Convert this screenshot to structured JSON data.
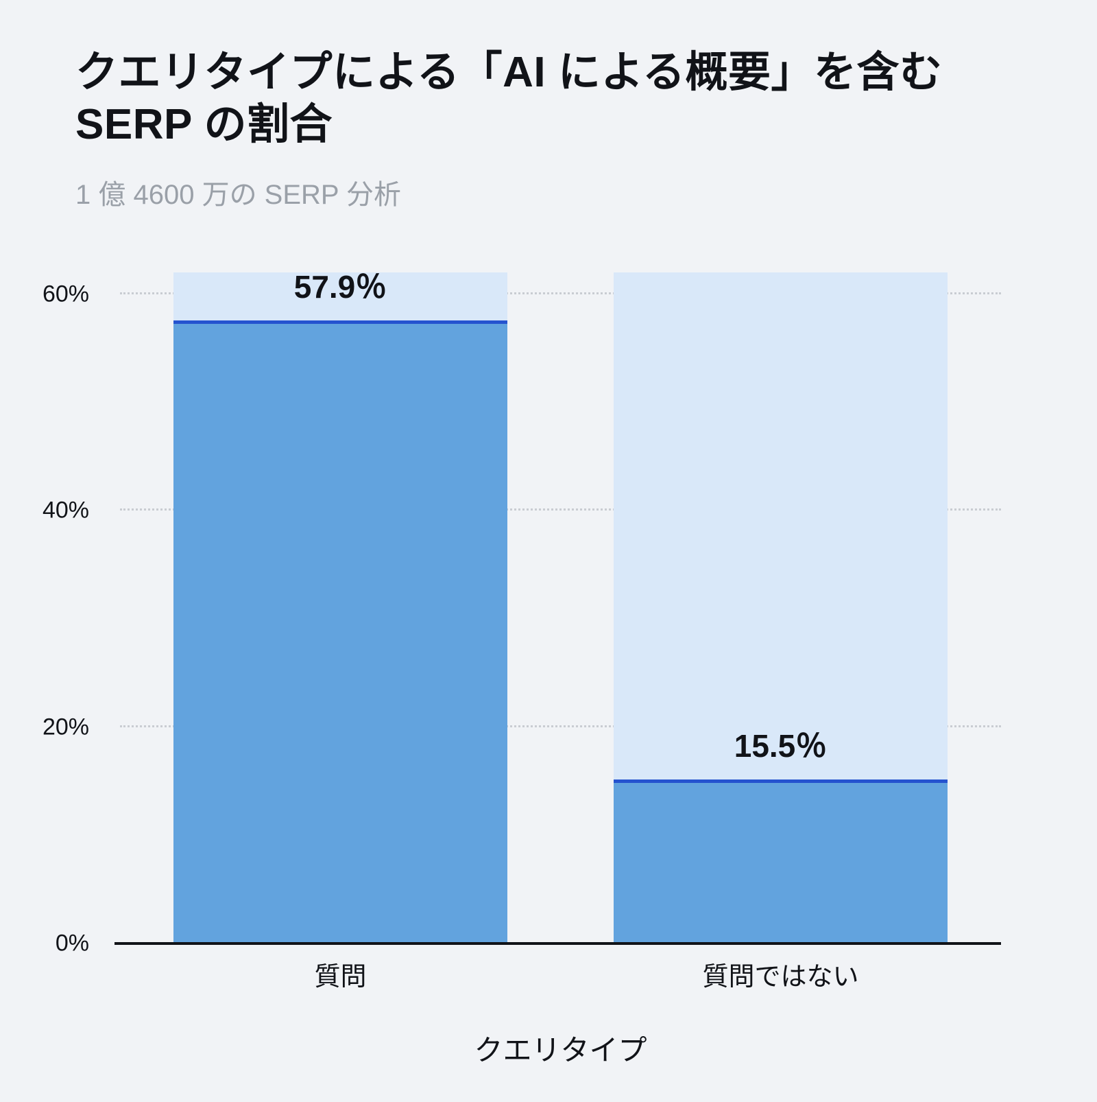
{
  "header": {
    "title": "クエリタイプによる「AI による概要」を含む SERP の割合",
    "subtitle": "1 億 4600 万の SERP 分析"
  },
  "colors": {
    "background": "#f1f3f6",
    "bar_track": "#d9e8f9",
    "bar_fill": "#62a3de",
    "bar_topline": "#2553cf",
    "subtitle_text": "#9aa0a8",
    "gridline": "#c9ccd2",
    "axis": "#111318"
  },
  "chart_data": {
    "type": "bar",
    "title": "クエリタイプによる「AI による概要」を含む SERP の割合",
    "subtitle": "1 億 4600 万の SERP 分析",
    "xlabel": "クエリタイプ",
    "ylabel": "",
    "categories": [
      "質問",
      "質問ではない"
    ],
    "values": [
      57.9,
      15.5
    ],
    "value_labels": [
      "57.9％",
      "15.5％"
    ],
    "ticks": [
      {
        "value": 0,
        "label": "0%"
      },
      {
        "value": 20,
        "label": "20%"
      },
      {
        "value": 40,
        "label": "40%"
      },
      {
        "value": 60,
        "label": "60%"
      }
    ],
    "ylim": [
      0,
      62
    ],
    "track_max": 62,
    "grid": "dotted-horizontal",
    "legend": "none"
  }
}
